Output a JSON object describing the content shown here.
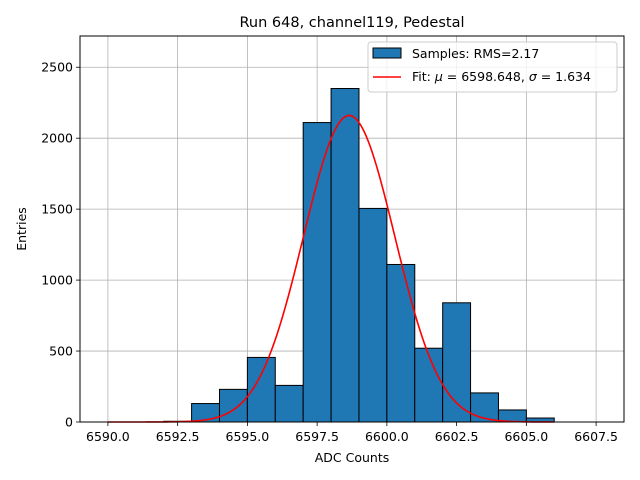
{
  "chart_data": {
    "type": "bar",
    "title": "Run 648, channel119, Pedestal",
    "xlabel": "ADC Counts",
    "ylabel": "Entries",
    "xlim": [
      6589.0,
      6608.5
    ],
    "ylim": [
      0,
      2720
    ],
    "xticks": [
      "6590.0",
      "6592.5",
      "6595.0",
      "6597.5",
      "6600.0",
      "6602.5",
      "6605.0",
      "6607.5"
    ],
    "xtick_values": [
      6590.0,
      6592.5,
      6595.0,
      6597.5,
      6600.0,
      6602.5,
      6605.0,
      6607.5
    ],
    "yticks": [
      "0",
      "500",
      "1000",
      "1500",
      "2000",
      "2500"
    ],
    "ytick_values": [
      0,
      500,
      1000,
      1500,
      2000,
      2500
    ],
    "grid": true,
    "legend_position": "top-right",
    "bars": [
      {
        "x0": 6592.0,
        "x1": 6593.0,
        "value": 5
      },
      {
        "x0": 6593.0,
        "x1": 6594.0,
        "value": 130
      },
      {
        "x0": 6594.0,
        "x1": 6595.0,
        "value": 230
      },
      {
        "x0": 6595.0,
        "x1": 6596.0,
        "value": 455
      },
      {
        "x0": 6596.0,
        "x1": 6597.0,
        "value": 258
      },
      {
        "x0": 6597.0,
        "x1": 6598.0,
        "value": 2110
      },
      {
        "x0": 6598.0,
        "x1": 6599.0,
        "value": 2350
      },
      {
        "x0": 6599.0,
        "x1": 6600.0,
        "value": 1505
      },
      {
        "x0": 6600.0,
        "x1": 6601.0,
        "value": 1110
      },
      {
        "x0": 6601.0,
        "x1": 6602.0,
        "value": 520
      },
      {
        "x0": 6602.0,
        "x1": 6603.0,
        "value": 840
      },
      {
        "x0": 6603.0,
        "x1": 6604.0,
        "value": 205
      },
      {
        "x0": 6604.0,
        "x1": 6605.0,
        "value": 85
      },
      {
        "x0": 6605.0,
        "x1": 6606.0,
        "value": 28
      }
    ],
    "fit": {
      "mu": 6598.648,
      "sigma": 1.634,
      "amplitude": 2160,
      "x_range": [
        6590.0,
        6606.0
      ]
    },
    "series": [
      {
        "name": "Samples: RMS=2.17",
        "kind": "histogram",
        "color": "#1f77b4",
        "edge_color": "#000000"
      },
      {
        "name_prefix": "Fit: ",
        "mu_symbol": "μ",
        "mu_text": " = 6598.648, ",
        "sigma_symbol": "σ",
        "sigma_text": " = 1.634",
        "kind": "line",
        "color": "#ff0000"
      }
    ],
    "grid_color": "#b0b0b0"
  }
}
